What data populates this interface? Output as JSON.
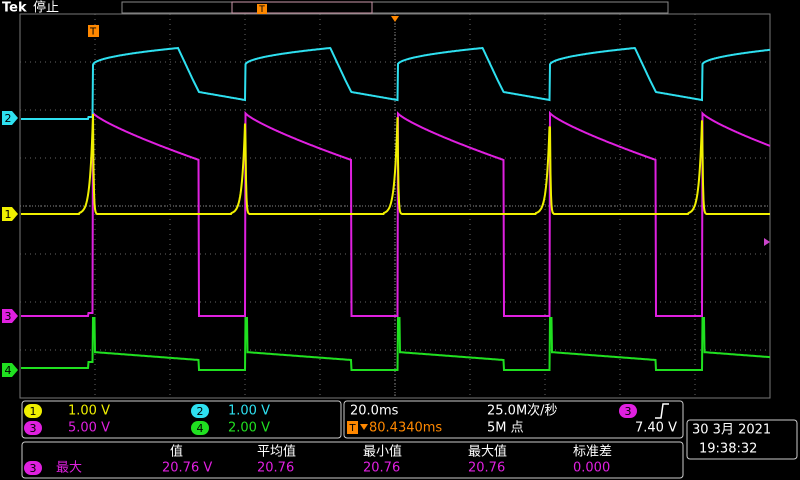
{
  "header": {
    "brand": "Tek",
    "status": "停止"
  },
  "trigger_marker": "T",
  "channels": [
    {
      "number": "1",
      "scale": "1.00 V"
    },
    {
      "number": "2",
      "scale": "1.00 V"
    },
    {
      "number": "3",
      "scale": "5.00 V"
    },
    {
      "number": "4",
      "scale": "2.00 V"
    }
  ],
  "timebase": {
    "scale": "20.0ms",
    "sample_rate": "25.0M次/秒",
    "trigger_position": "80.4340ms",
    "record_length": "5M 点",
    "trigger_channel": "3",
    "trigger_level": "7.40 V"
  },
  "datetime": {
    "date": "30 3月 2021",
    "time": "19:38:32"
  },
  "measurement": {
    "headers": [
      "值",
      "平均值",
      "最小值",
      "最大值",
      "标准差"
    ],
    "source": "3",
    "name": "最大",
    "values": [
      "20.76 V",
      "20.76",
      "20.76",
      "20.76",
      "0.000"
    ]
  }
}
